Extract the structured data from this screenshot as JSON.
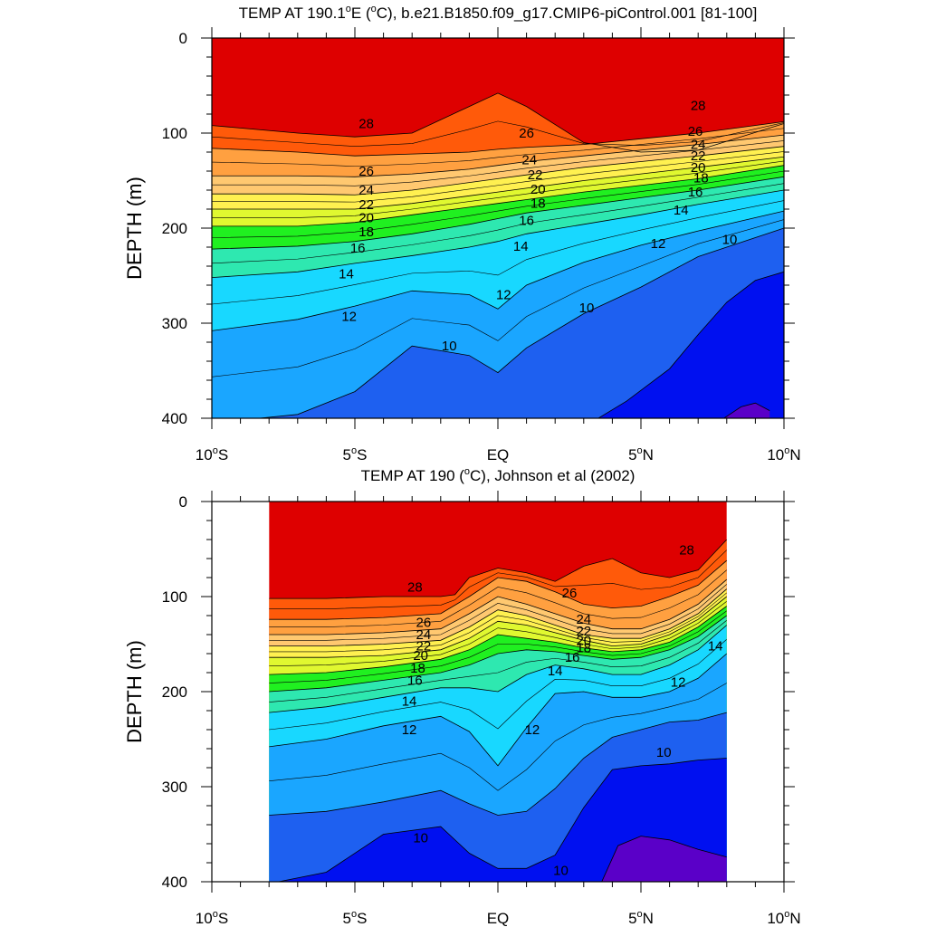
{
  "chart_data": [
    {
      "type": "contour",
      "title": "TEMP AT 190.1°E (°C), b.e21.B1850.f09_g17.CMIP6-piControl.001 [81-100]",
      "title_parts": {
        "pre": "TEMP AT 190.1",
        "deg1": "o",
        "mid": "E (",
        "deg2": "o",
        "post": "C), b.e21.B1850.f09_g17.CMIP6-piControl.001 [81-100]"
      },
      "xlabel": "",
      "ylabel": "DEPTH (m)",
      "x_range": [
        -10,
        10
      ],
      "ylim": [
        0,
        400
      ],
      "y_reversed": true,
      "data_x_range": [
        -10,
        10
      ],
      "x_ticks": [
        -10,
        -5,
        0,
        5,
        10
      ],
      "y_ticks": [
        0,
        100,
        200,
        300,
        400
      ],
      "contour_interval": 1,
      "contours": [
        {
          "level": 28,
          "x": [
            -10,
            -7,
            -5,
            -3,
            -1,
            0,
            1,
            3,
            5,
            7,
            10
          ],
          "depth": [
            92,
            100,
            104,
            100,
            72,
            58,
            72,
            110,
            120,
            118,
            90
          ]
        },
        {
          "level": 26,
          "x": [
            -10,
            -7,
            -5,
            -3,
            -1,
            0,
            1,
            3,
            5,
            7,
            10
          ],
          "depth": [
            116,
            120,
            124,
            122,
            120,
            117,
            115,
            112,
            106,
            100,
            88
          ]
        },
        {
          "level": 24,
          "x": [
            -10,
            -7,
            -5,
            -3,
            -1,
            0,
            1,
            3,
            5,
            7,
            10
          ],
          "depth": [
            145,
            145,
            146,
            143,
            138,
            134,
            130,
            124,
            118,
            112,
            102
          ]
        },
        {
          "level": 22,
          "x": [
            -10,
            -7,
            -5,
            -3,
            -1,
            0,
            1,
            3,
            5,
            7,
            10
          ],
          "depth": [
            164,
            164,
            165,
            160,
            152,
            148,
            144,
            136,
            130,
            124,
            114
          ]
        },
        {
          "level": 20,
          "x": [
            -10,
            -7,
            -5,
            -3,
            -1,
            0,
            1,
            3,
            5,
            7,
            10
          ],
          "depth": [
            180,
            180,
            180,
            174,
            166,
            162,
            158,
            150,
            143,
            136,
            125
          ]
        },
        {
          "level": 18,
          "x": [
            -10,
            -7,
            -5,
            -3,
            -1,
            0,
            1,
            3,
            5,
            7,
            10
          ],
          "depth": [
            198,
            198,
            194,
            186,
            178,
            174,
            170,
            162,
            155,
            148,
            134
          ]
        },
        {
          "level": 16,
          "x": [
            -10,
            -7,
            -5,
            -3,
            -1,
            0,
            1,
            3,
            5,
            7,
            10
          ],
          "depth": [
            222,
            219,
            214,
            206,
            196,
            190,
            184,
            176,
            168,
            160,
            146
          ]
        },
        {
          "level": 14,
          "x": [
            -10,
            -7,
            -5,
            -3,
            -1,
            0,
            1,
            3,
            5,
            7,
            10
          ],
          "depth": [
            252,
            246,
            237,
            229,
            220,
            214,
            206,
            196,
            186,
            175,
            160
          ]
        },
        {
          "level": 12,
          "x": [
            -10,
            -7,
            -5,
            -3,
            -1,
            0,
            1,
            3,
            5,
            7,
            10
          ],
          "depth": [
            308,
            296,
            282,
            266,
            270,
            285,
            260,
            236,
            218,
            203,
            182
          ]
        },
        {
          "level": 10,
          "x": [
            -10,
            -7,
            -5,
            -3,
            -1,
            0,
            1,
            3,
            5,
            7,
            10
          ],
          "depth": [
            405,
            396,
            372,
            324,
            334,
            352,
            326,
            290,
            262,
            230,
            200
          ]
        },
        {
          "level": 9,
          "x": [
            3.4,
            4.5,
            6,
            7,
            8,
            9,
            10
          ],
          "depth": [
            402,
            382,
            348,
            312,
            278,
            255,
            246
          ]
        },
        {
          "level": 8,
          "x": [
            7.8,
            8.5,
            9,
            9.5
          ],
          "depth": [
            402,
            388,
            384,
            392
          ]
        }
      ],
      "contour_labels": [
        {
          "text": "28",
          "x": -4.6,
          "depth": 90
        },
        {
          "text": "26",
          "x": -4.6,
          "depth": 140
        },
        {
          "text": "24",
          "x": -4.6,
          "depth": 160
        },
        {
          "text": "22",
          "x": -4.6,
          "depth": 175
        },
        {
          "text": "20",
          "x": -4.6,
          "depth": 189
        },
        {
          "text": "18",
          "x": -4.6,
          "depth": 204
        },
        {
          "text": "16",
          "x": -4.9,
          "depth": 221
        },
        {
          "text": "14",
          "x": -5.3,
          "depth": 248
        },
        {
          "text": "12",
          "x": -5.2,
          "depth": 293
        },
        {
          "text": "26",
          "x": 1.0,
          "depth": 100
        },
        {
          "text": "24",
          "x": 1.1,
          "depth": 128
        },
        {
          "text": "22",
          "x": 1.3,
          "depth": 144
        },
        {
          "text": "20",
          "x": 1.4,
          "depth": 159
        },
        {
          "text": "18",
          "x": 1.4,
          "depth": 174
        },
        {
          "text": "16",
          "x": 1.0,
          "depth": 192
        },
        {
          "text": "14",
          "x": 0.8,
          "depth": 219
        },
        {
          "text": "12",
          "x": 0.2,
          "depth": 270
        },
        {
          "text": "10",
          "x": -1.7,
          "depth": 324
        },
        {
          "text": "10",
          "x": 3.1,
          "depth": 284
        },
        {
          "text": "28",
          "x": 7.0,
          "depth": 71
        },
        {
          "text": "26",
          "x": 6.9,
          "depth": 98
        },
        {
          "text": "24",
          "x": 7.0,
          "depth": 112
        },
        {
          "text": "22",
          "x": 7.0,
          "depth": 124
        },
        {
          "text": "20",
          "x": 7.0,
          "depth": 136
        },
        {
          "text": "18",
          "x": 7.1,
          "depth": 147
        },
        {
          "text": "16",
          "x": 6.9,
          "depth": 162
        },
        {
          "text": "14",
          "x": 6.4,
          "depth": 181
        },
        {
          "text": "12",
          "x": 5.6,
          "depth": 216
        },
        {
          "text": "10",
          "x": 8.1,
          "depth": 212
        }
      ]
    },
    {
      "type": "contour",
      "title": "TEMP AT 190 (°C), Johnson et al (2002)",
      "title_parts": {
        "pre": "TEMP AT 190 (",
        "deg1": "o",
        "mid": "C), Johnson et al (2002)",
        "deg2": "",
        "post": ""
      },
      "xlabel": "",
      "ylabel": "DEPTH (m)",
      "x_range": [
        -10,
        10
      ],
      "ylim": [
        0,
        400
      ],
      "y_reversed": true,
      "data_x_range": [
        -8,
        8
      ],
      "x_ticks": [
        -10,
        -5,
        0,
        5,
        10
      ],
      "y_ticks": [
        0,
        100,
        200,
        300,
        400
      ],
      "contour_interval": 1,
      "contours": [
        {
          "level": 28,
          "x": [
            -8,
            -6,
            -4,
            -2,
            -1.5,
            -1,
            0,
            1,
            2,
            3,
            4,
            5,
            6,
            7,
            8
          ],
          "depth": [
            102,
            102,
            100,
            100,
            98,
            80,
            70,
            75,
            84,
            68,
            60,
            75,
            80,
            72,
            40
          ]
        },
        {
          "level": 26,
          "x": [
            -8,
            -6,
            -4,
            -2,
            -1,
            0,
            1,
            2,
            3,
            4,
            5,
            6,
            7,
            8
          ],
          "depth": [
            124,
            124,
            122,
            118,
            100,
            80,
            84,
            95,
            108,
            112,
            110,
            100,
            88,
            62
          ]
        },
        {
          "level": 24,
          "x": [
            -8,
            -6,
            -4,
            -2,
            -1,
            0,
            1,
            2,
            3,
            4,
            5,
            6,
            7,
            8
          ],
          "depth": [
            140,
            140,
            138,
            134,
            118,
            100,
            108,
            118,
            128,
            134,
            134,
            124,
            108,
            82
          ]
        },
        {
          "level": 22,
          "x": [
            -8,
            -6,
            -4,
            -2,
            -1,
            0,
            1,
            2,
            3,
            4,
            5,
            6,
            7,
            8
          ],
          "depth": [
            152,
            152,
            150,
            146,
            132,
            114,
            120,
            130,
            140,
            144,
            144,
            134,
            118,
            92
          ]
        },
        {
          "level": 20,
          "x": [
            -8,
            -6,
            -4,
            -2,
            -1,
            0,
            1,
            2,
            3,
            4,
            5,
            6,
            7,
            8
          ],
          "depth": [
            164,
            164,
            162,
            156,
            144,
            126,
            130,
            138,
            146,
            152,
            150,
            140,
            124,
            100
          ]
        },
        {
          "level": 18,
          "x": [
            -8,
            -6,
            -4,
            -2,
            -1,
            0,
            1,
            2,
            3,
            4,
            5,
            6,
            7,
            8
          ],
          "depth": [
            182,
            180,
            174,
            166,
            156,
            140,
            144,
            148,
            154,
            158,
            156,
            148,
            132,
            110
          ]
        },
        {
          "level": 16,
          "x": [
            -8,
            -6,
            -4,
            -2,
            -1,
            0,
            1,
            2,
            3,
            4,
            5,
            6,
            7,
            8
          ],
          "depth": [
            200,
            196,
            188,
            180,
            172,
            160,
            156,
            158,
            162,
            166,
            164,
            156,
            142,
            120
          ]
        },
        {
          "level": 14,
          "x": [
            -8,
            -6,
            -4,
            -2,
            -1,
            0,
            1,
            2,
            3,
            4,
            5,
            6,
            7,
            8
          ],
          "depth": [
            222,
            216,
            206,
            196,
            196,
            200,
            182,
            172,
            176,
            182,
            182,
            172,
            156,
            130
          ]
        },
        {
          "level": 12,
          "x": [
            -8,
            -6,
            -4,
            -2,
            -1,
            0,
            1,
            2,
            3,
            4,
            5,
            6,
            7,
            8
          ],
          "depth": [
            258,
            250,
            236,
            226,
            242,
            278,
            238,
            202,
            200,
            206,
            206,
            200,
            186,
            160
          ]
        },
        {
          "level": 10,
          "x": [
            -8,
            -6,
            -4,
            -2,
            -1,
            0,
            1,
            2,
            3,
            4,
            5,
            6,
            7,
            8
          ],
          "depth": [
            330,
            326,
            316,
            304,
            318,
            330,
            326,
            302,
            270,
            248,
            240,
            232,
            230,
            222
          ]
        },
        {
          "level": 9,
          "x": [
            -8,
            -6,
            -4,
            -2,
            -1,
            0,
            1,
            2,
            3,
            4,
            5,
            6,
            7,
            8
          ],
          "depth": [
            402,
            390,
            350,
            342,
            370,
            386,
            386,
            372,
            322,
            282,
            278,
            276,
            272,
            270
          ]
        },
        {
          "level": 8,
          "x": [
            3.6,
            4.2,
            5,
            6,
            7,
            8
          ],
          "depth": [
            402,
            362,
            352,
            356,
            366,
            374
          ]
        }
      ],
      "contour_labels": [
        {
          "text": "28",
          "x": -2.9,
          "depth": 90
        },
        {
          "text": "26",
          "x": -2.6,
          "depth": 127
        },
        {
          "text": "24",
          "x": -2.6,
          "depth": 140
        },
        {
          "text": "22",
          "x": -2.6,
          "depth": 152
        },
        {
          "text": "20",
          "x": -2.7,
          "depth": 162
        },
        {
          "text": "18",
          "x": -2.8,
          "depth": 175
        },
        {
          "text": "16",
          "x": -2.9,
          "depth": 188
        },
        {
          "text": "14",
          "x": -3.1,
          "depth": 210
        },
        {
          "text": "12",
          "x": -3.1,
          "depth": 240
        },
        {
          "text": "26",
          "x": 2.5,
          "depth": 96
        },
        {
          "text": "24",
          "x": 3.0,
          "depth": 124
        },
        {
          "text": "22",
          "x": 3.0,
          "depth": 136
        },
        {
          "text": "20",
          "x": 3.0,
          "depth": 146
        },
        {
          "text": "18",
          "x": 3.0,
          "depth": 154
        },
        {
          "text": "16",
          "x": 2.6,
          "depth": 164
        },
        {
          "text": "14",
          "x": 2.0,
          "depth": 178
        },
        {
          "text": "12",
          "x": 1.2,
          "depth": 240
        },
        {
          "text": "10",
          "x": -2.7,
          "depth": 354
        },
        {
          "text": "10",
          "x": 2.2,
          "depth": 388
        },
        {
          "text": "28",
          "x": 6.6,
          "depth": 51
        },
        {
          "text": "14",
          "x": 7.6,
          "depth": 152
        },
        {
          "text": "12",
          "x": 6.3,
          "depth": 190
        },
        {
          "text": "10",
          "x": 5.8,
          "depth": 264
        }
      ]
    }
  ],
  "colors": {
    "t_below8": "#5a00c8",
    "t8_9": "#0010f0",
    "t9_10": "#1e60f0",
    "t10_11": "#3c8cf5",
    "t11_12": "#1aa6ff",
    "t12_13": "#18c0ff",
    "t13_14": "#18d8ff",
    "t14_15": "#2cf0ff",
    "t15_16": "#2ee8b0",
    "t16_17": "#10e860",
    "t17_18": "#20f020",
    "t18_19": "#90f020",
    "t19_20": "#e0f830",
    "t20_21": "#ffff28",
    "t21_22": "#fff050",
    "t22_23": "#ffe078",
    "t23_24": "#ffc870",
    "t24_25": "#ffb060",
    "t25_26": "#ffa040",
    "t26_27": "#f58a08",
    "t27_28": "#ff5a0a",
    "t28_29": "#ff1e00",
    "t_above29": "#de0000"
  }
}
